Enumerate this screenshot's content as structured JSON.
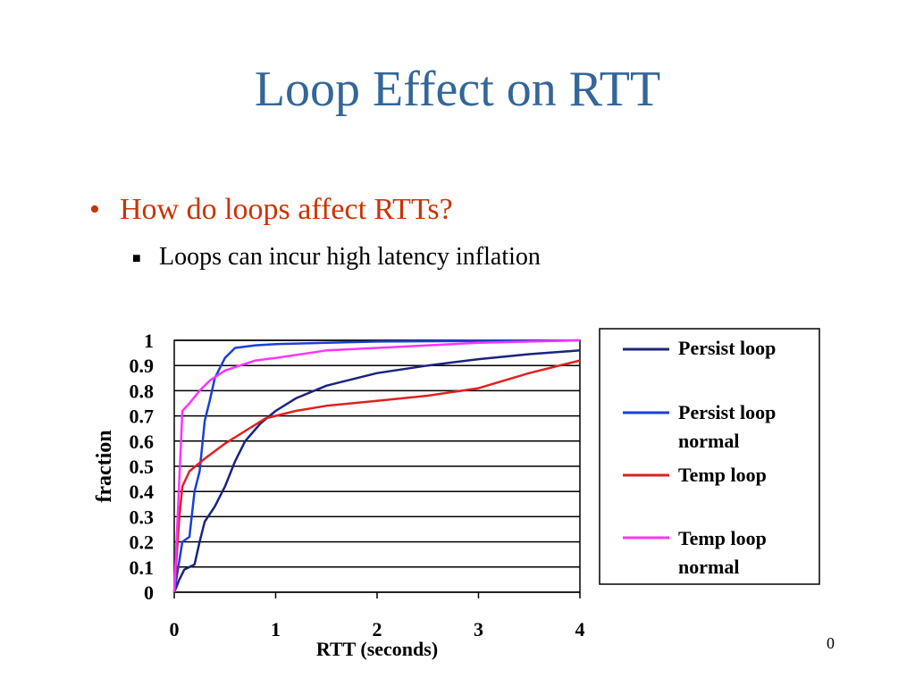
{
  "slide": {
    "title": "Loop Effect on RTT",
    "bullets": [
      {
        "text": "How do loops affect RTTs?",
        "level": 1
      },
      {
        "text": "Loops can incur high latency inflation",
        "level": 2
      }
    ],
    "page_number": "0",
    "colors": {
      "title": "#336699",
      "bullet_level1": "#cc3300"
    }
  },
  "chart_data": {
    "type": "line",
    "xlabel": "RTT (seconds)",
    "ylabel": "fraction",
    "xlim": [
      0,
      4
    ],
    "ylim": [
      0,
      1
    ],
    "x_ticks": [
      "0",
      "1",
      "2",
      "3",
      "4"
    ],
    "y_ticks": [
      "0",
      "0.1",
      "0.2",
      "0.3",
      "0.4",
      "0.5",
      "0.6",
      "0.7",
      "0.8",
      "0.9",
      "1"
    ],
    "grid": "horizontal",
    "legend_position": "right",
    "series": [
      {
        "name": "Persist loop",
        "color": "#1a237e",
        "points": [
          [
            0,
            0
          ],
          [
            0.05,
            0.05
          ],
          [
            0.1,
            0.09
          ],
          [
            0.2,
            0.11
          ],
          [
            0.25,
            0.2
          ],
          [
            0.3,
            0.28
          ],
          [
            0.4,
            0.34
          ],
          [
            0.5,
            0.42
          ],
          [
            0.6,
            0.52
          ],
          [
            0.7,
            0.6
          ],
          [
            0.85,
            0.67
          ],
          [
            1.0,
            0.72
          ],
          [
            1.2,
            0.77
          ],
          [
            1.5,
            0.82
          ],
          [
            1.8,
            0.85
          ],
          [
            2.0,
            0.87
          ],
          [
            2.5,
            0.9
          ],
          [
            3.0,
            0.925
          ],
          [
            3.5,
            0.945
          ],
          [
            4.0,
            0.96
          ]
        ]
      },
      {
        "name": "Persist loop normal",
        "color": "#1a3fd9",
        "points": [
          [
            0,
            0
          ],
          [
            0.08,
            0.2
          ],
          [
            0.15,
            0.22
          ],
          [
            0.2,
            0.4
          ],
          [
            0.25,
            0.48
          ],
          [
            0.3,
            0.68
          ],
          [
            0.35,
            0.76
          ],
          [
            0.4,
            0.85
          ],
          [
            0.5,
            0.93
          ],
          [
            0.6,
            0.97
          ],
          [
            0.8,
            0.98
          ],
          [
            1.0,
            0.985
          ],
          [
            1.5,
            0.99
          ],
          [
            2.0,
            0.995
          ],
          [
            4.0,
            1.0
          ]
        ]
      },
      {
        "name": "Temp loop",
        "color": "#e02020",
        "points": [
          [
            0,
            0
          ],
          [
            0.05,
            0.3
          ],
          [
            0.08,
            0.42
          ],
          [
            0.15,
            0.48
          ],
          [
            0.3,
            0.53
          ],
          [
            0.5,
            0.59
          ],
          [
            0.7,
            0.64
          ],
          [
            0.9,
            0.69
          ],
          [
            1.2,
            0.72
          ],
          [
            1.5,
            0.74
          ],
          [
            2.0,
            0.76
          ],
          [
            2.5,
            0.78
          ],
          [
            3.0,
            0.81
          ],
          [
            3.5,
            0.87
          ],
          [
            4.0,
            0.92
          ]
        ]
      },
      {
        "name": "Temp loop normal",
        "color": "#ff33ff",
        "points": [
          [
            0,
            0
          ],
          [
            0.05,
            0.45
          ],
          [
            0.08,
            0.72
          ],
          [
            0.15,
            0.75
          ],
          [
            0.25,
            0.8
          ],
          [
            0.35,
            0.84
          ],
          [
            0.5,
            0.88
          ],
          [
            0.8,
            0.92
          ],
          [
            1.0,
            0.93
          ],
          [
            1.5,
            0.96
          ],
          [
            2.0,
            0.97
          ],
          [
            3.0,
            0.99
          ],
          [
            4.0,
            1.0
          ]
        ]
      }
    ]
  }
}
